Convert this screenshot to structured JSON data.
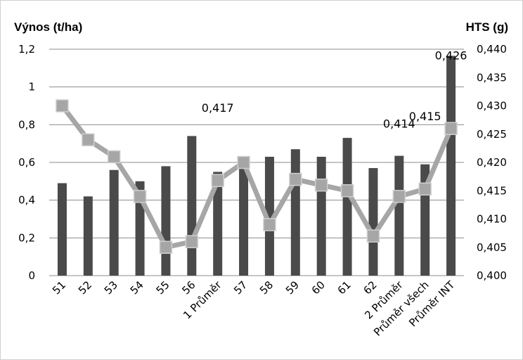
{
  "chart_data": {
    "type": "bar",
    "categories": [
      "51",
      "52",
      "53",
      "54",
      "55",
      "56",
      "1 Průměr",
      "57",
      "58",
      "59",
      "60",
      "61",
      "62",
      "2 Průměr",
      "Průměr všech",
      "Průměr INT"
    ],
    "series": [
      {
        "type": "bar",
        "axis": "left",
        "color": "#4a4a4a",
        "values": [
          0.49,
          0.42,
          0.56,
          0.5,
          0.58,
          0.74,
          0.55,
          0.57,
          0.63,
          0.67,
          0.63,
          0.73,
          0.57,
          0.635,
          0.59,
          1.165
        ]
      },
      {
        "type": "line",
        "axis": "right",
        "color": "#a6a6a6",
        "marker": "square",
        "values": [
          0.43,
          0.424,
          0.421,
          0.414,
          0.405,
          0.406,
          0.4168,
          0.42,
          0.409,
          0.417,
          0.416,
          0.415,
          0.407,
          0.414,
          0.4153,
          0.426
        ]
      }
    ],
    "ylabel_left": "Výnos (t/ha)",
    "ylabel_right": "HTS (g)",
    "ylim_left": [
      0,
      1.2
    ],
    "ylim_right": [
      0.4,
      0.44
    ],
    "yticks_left": [
      "0",
      "0,2",
      "0,4",
      "0,6",
      "0,8",
      "1",
      "1,2"
    ],
    "yticks_right": [
      "0,400",
      "0,405",
      "0,410",
      "0,415",
      "0,420",
      "0,425",
      "0,430",
      "0,435",
      "0,440"
    ],
    "grid": true,
    "legend": "none",
    "data_labels": [
      {
        "category": "1 Průměr",
        "text": "0,417"
      },
      {
        "category": "2 Průměr",
        "text": "0,414"
      },
      {
        "category": "Průměr všech",
        "text": "0,415"
      },
      {
        "category": "Průměr INT",
        "text": "0,426"
      }
    ]
  }
}
